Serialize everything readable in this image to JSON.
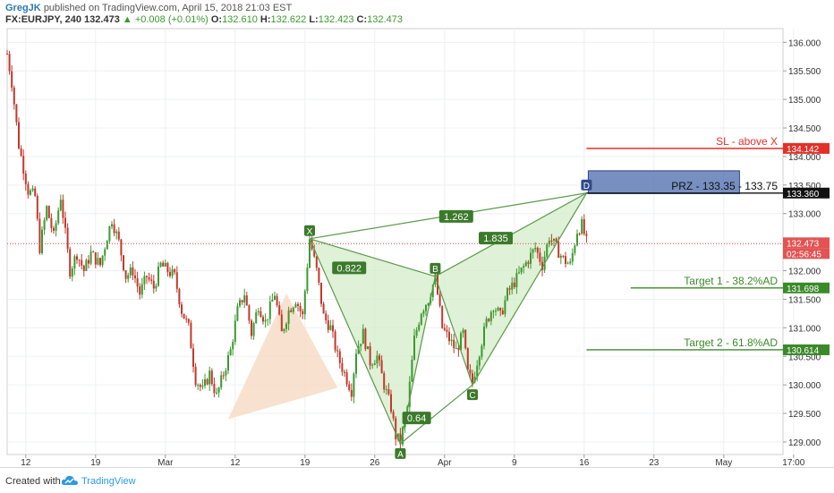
{
  "header": {
    "author": "GregJK",
    "published": "published on TradingView.com, April 15, 2018 21:03 EST",
    "symbol": "FX:EURJPY, 240",
    "last": "132.473",
    "change": "▲ +0.008 (+0.01%)",
    "o_label": "O:",
    "o_value": "132.610",
    "h_label": "H:",
    "h_value": "132.622",
    "l_label": "L:",
    "l_value": "132.423",
    "c_label": "C:",
    "c_value": "132.473"
  },
  "footer": {
    "created_with": "Created with",
    "brand": "TradingView"
  },
  "colors": {
    "up": "#3b9a2e",
    "down": "#c0392b",
    "pattern_fill": "#d4ecc9",
    "pattern_line": "#5a9a4a",
    "peach_fill": "#f7dcc6",
    "sl_line": "#e0322a",
    "target_line": "#3b8a2a",
    "prz_fill": "#3f5fa8"
  },
  "chart_data": {
    "type": "candlestick",
    "ylim": [
      128.78,
      136.24
    ],
    "y_ticks": [
      129.0,
      129.5,
      130.0,
      130.5,
      131.0,
      131.5,
      132.0,
      132.5,
      133.0,
      133.5,
      134.0,
      134.5,
      135.0,
      135.5,
      136.0
    ],
    "y_tick_labels": [
      "129.000",
      "129.500",
      "130.000",
      "130.500",
      "131.000",
      "131.500",
      "132.000",
      "132.500",
      "133.000",
      "133.500",
      "134.000",
      "134.500",
      "135.000",
      "135.500",
      "136.000"
    ],
    "x_ticks": [
      {
        "label": "12",
        "bar": 8
      },
      {
        "label": "19",
        "bar": 38
      },
      {
        "label": "Mar",
        "bar": 68
      },
      {
        "label": "12",
        "bar": 98
      },
      {
        "label": "19",
        "bar": 128
      },
      {
        "label": "26",
        "bar": 158
      },
      {
        "label": "Apr",
        "bar": 188
      },
      {
        "label": "9",
        "bar": 218
      },
      {
        "label": "16",
        "bar": 248
      },
      {
        "label": "23",
        "bar": 278
      },
      {
        "label": "May",
        "bar": 308
      },
      {
        "label": "17:00",
        "bar": 338
      }
    ],
    "price_line": 132.473,
    "price_label": "132.473",
    "countdown_label": "02:56:45",
    "harmonic": {
      "points": [
        {
          "name": "X",
          "bar": 130,
          "price": 132.56
        },
        {
          "name": "A",
          "bar": 169,
          "price": 128.97
        },
        {
          "name": "B",
          "bar": 184,
          "price": 131.9
        },
        {
          "name": "C",
          "bar": 200,
          "price": 130.0
        },
        {
          "name": "D",
          "bar": 249,
          "price": 133.36
        }
      ],
      "ratios": [
        {
          "label": "0.822",
          "bar": 147,
          "price": 132.05
        },
        {
          "label": "1.262",
          "bar": 193,
          "price": 132.95
        },
        {
          "label": "1.835",
          "bar": 210,
          "price": 132.57
        },
        {
          "label": "0.64",
          "bar": 176,
          "price": 129.42
        }
      ]
    },
    "peach_triangle": [
      {
        "bar": 95,
        "price": 129.4
      },
      {
        "bar": 120,
        "price": 131.6
      },
      {
        "bar": 142,
        "price": 129.95
      }
    ],
    "levels": [
      {
        "name": "SL - above X",
        "price": 134.142,
        "label": "134.142",
        "kind": "sl",
        "from_bar": 249
      },
      {
        "name": "PRZ - 133.35 - 133.75",
        "price": 133.36,
        "label": "133.360",
        "kind": "prz",
        "from_bar": 249
      },
      {
        "name": "Target 1 - 38.2%AD",
        "price": 131.698,
        "label": "131.698",
        "kind": "target",
        "from_bar": 268
      },
      {
        "name": "Target 2 - 61.8%AD",
        "price": 130.614,
        "label": "130.614",
        "kind": "target",
        "from_bar": 249
      }
    ],
    "prz": {
      "low": 133.35,
      "high": 133.75,
      "from_bar": 249,
      "to_bar": 314
    },
    "waypoints": [
      [
        0,
        135.8
      ],
      [
        2,
        135.3
      ],
      [
        5,
        134.2
      ],
      [
        9,
        133.4
      ],
      [
        12,
        133.3
      ],
      [
        14,
        132.4
      ],
      [
        17,
        133.1
      ],
      [
        20,
        132.6
      ],
      [
        23,
        133.3
      ],
      [
        27,
        132.0
      ],
      [
        30,
        132.3
      ],
      [
        33,
        132.0
      ],
      [
        36,
        132.3
      ],
      [
        40,
        132.1
      ],
      [
        43,
        132.6
      ],
      [
        45,
        132.9
      ],
      [
        48,
        132.5
      ],
      [
        51,
        131.9
      ],
      [
        54,
        132.0
      ],
      [
        57,
        131.6
      ],
      [
        60,
        131.9
      ],
      [
        63,
        131.7
      ],
      [
        66,
        132.1
      ],
      [
        69,
        132.0
      ],
      [
        72,
        131.9
      ],
      [
        75,
        131.3
      ],
      [
        78,
        131.0
      ],
      [
        81,
        130.1
      ],
      [
        84,
        129.9
      ],
      [
        87,
        130.2
      ],
      [
        90,
        129.8
      ],
      [
        93,
        130.2
      ],
      [
        96,
        130.6
      ],
      [
        99,
        131.3
      ],
      [
        102,
        131.6
      ],
      [
        105,
        130.9
      ],
      [
        108,
        131.4
      ],
      [
        111,
        131.1
      ],
      [
        115,
        131.6
      ],
      [
        118,
        130.9
      ],
      [
        121,
        131.3
      ],
      [
        124,
        131.5
      ],
      [
        127,
        131.2
      ],
      [
        130,
        132.56
      ],
      [
        133,
        132.0
      ],
      [
        136,
        131.2
      ],
      [
        139,
        131.0
      ],
      [
        142,
        130.5
      ],
      [
        145,
        130.2
      ],
      [
        148,
        129.9
      ],
      [
        150,
        130.6
      ],
      [
        153,
        130.9
      ],
      [
        156,
        130.4
      ],
      [
        159,
        130.5
      ],
      [
        162,
        130.0
      ],
      [
        165,
        129.6
      ],
      [
        167,
        129.1
      ],
      [
        169,
        129.0
      ],
      [
        172,
        129.6
      ],
      [
        175,
        130.8
      ],
      [
        178,
        131.3
      ],
      [
        181,
        131.5
      ],
      [
        184,
        131.88
      ],
      [
        187,
        131.0
      ],
      [
        190,
        130.8
      ],
      [
        193,
        130.6
      ],
      [
        196,
        130.9
      ],
      [
        198,
        130.2
      ],
      [
        200,
        130.05
      ],
      [
        203,
        130.6
      ],
      [
        206,
        131.1
      ],
      [
        209,
        131.4
      ],
      [
        212,
        131.2
      ],
      [
        215,
        131.6
      ],
      [
        218,
        131.8
      ],
      [
        221,
        132.0
      ],
      [
        224,
        132.2
      ],
      [
        227,
        132.4
      ],
      [
        230,
        132.1
      ],
      [
        233,
        132.6
      ],
      [
        236,
        132.4
      ],
      [
        239,
        132.2
      ],
      [
        242,
        132.1
      ],
      [
        245,
        132.7
      ],
      [
        247,
        132.8
      ],
      [
        249,
        132.5
      ]
    ]
  }
}
